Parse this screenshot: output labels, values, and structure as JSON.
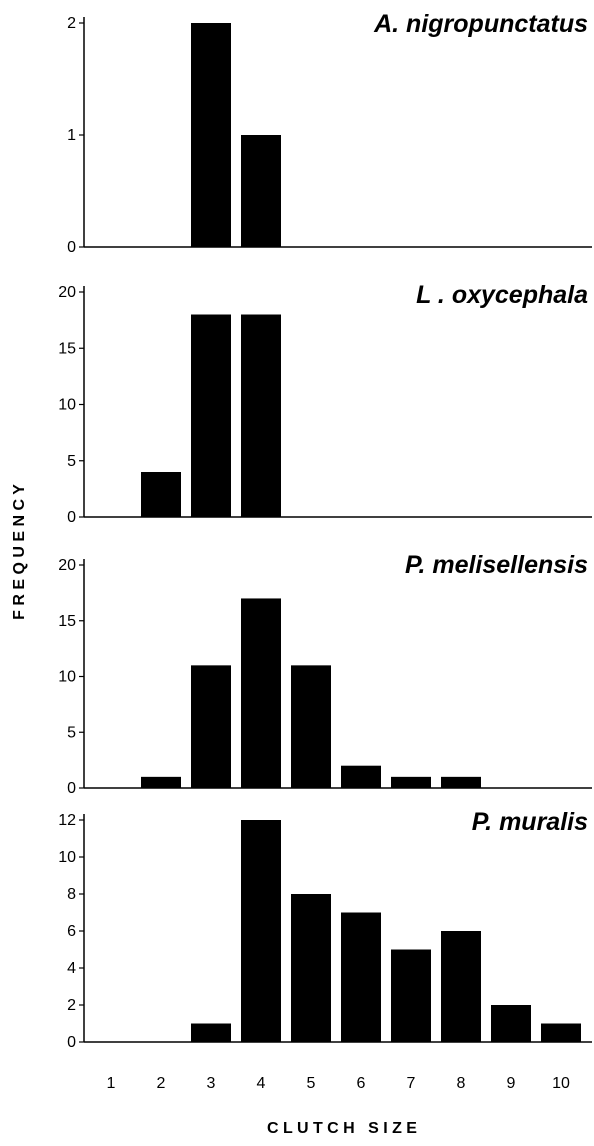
{
  "chart_data": {
    "type": "bar",
    "xlabel": "C L U T C H   S I Z E",
    "ylabel": "F R E Q U E N C Y",
    "categories": [
      "1",
      "2",
      "3",
      "4",
      "5",
      "6",
      "7",
      "8",
      "9",
      "10"
    ],
    "panels": [
      {
        "title": "A. nigropunctatus",
        "ylim": [
          0,
          2
        ],
        "yticks": [
          "0",
          "1",
          "2"
        ],
        "values": [
          0,
          0,
          2,
          1,
          0,
          0,
          0,
          0,
          0,
          0
        ]
      },
      {
        "title": "L . oxycephala",
        "ylim": [
          0,
          20
        ],
        "yticks": [
          "0",
          "5",
          "10",
          "15",
          "20"
        ],
        "values": [
          0,
          4,
          18,
          18,
          0,
          0,
          0,
          0,
          0,
          0
        ]
      },
      {
        "title": "P. melisellensis",
        "ylim": [
          0,
          20
        ],
        "yticks": [
          "0",
          "5",
          "10",
          "15",
          "20"
        ],
        "values": [
          0,
          1,
          11,
          17,
          11,
          2,
          1,
          1,
          0,
          0
        ]
      },
      {
        "title": "P. muralis",
        "ylim": [
          0,
          12
        ],
        "yticks": [
          "0",
          "2",
          "4",
          "6",
          "8",
          "10",
          "12"
        ],
        "values": [
          0,
          0,
          1,
          12,
          8,
          7,
          5,
          6,
          2,
          1
        ]
      }
    ]
  }
}
